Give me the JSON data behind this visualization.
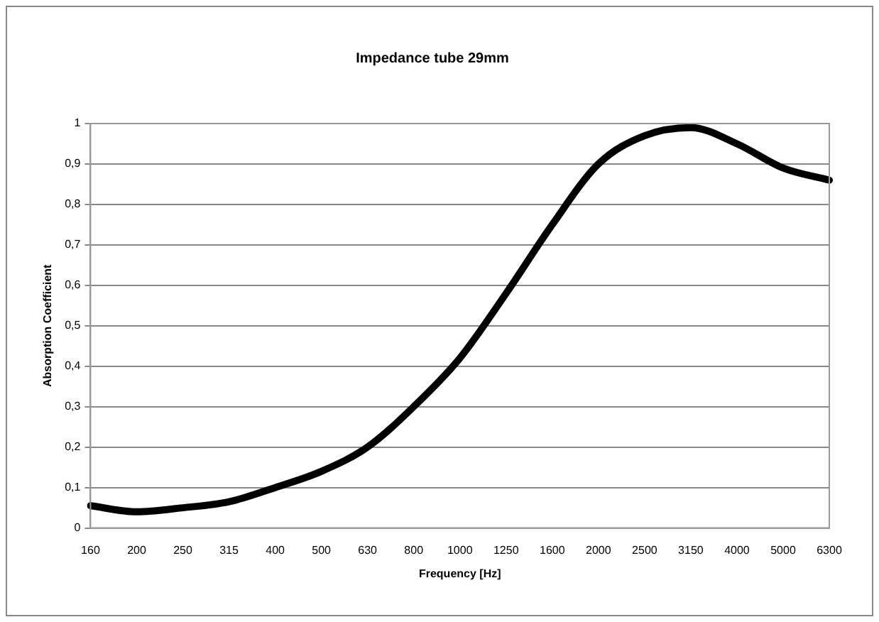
{
  "chart_data": {
    "type": "line",
    "title": "Impedance tube 29mm",
    "xlabel": "Frequency [Hz]",
    "ylabel": "Absorption Coefficient",
    "categories": [
      "160",
      "200",
      "250",
      "315",
      "400",
      "500",
      "630",
      "800",
      "1000",
      "1250",
      "1600",
      "2000",
      "2500",
      "3150",
      "4000",
      "5000",
      "6300"
    ],
    "series": [
      {
        "color": "#000000",
        "values": [
          0.055,
          0.04,
          0.05,
          0.065,
          0.1,
          0.14,
          0.2,
          0.3,
          0.42,
          0.58,
          0.75,
          0.9,
          0.97,
          0.99,
          0.95,
          0.89,
          0.86
        ]
      }
    ],
    "ylim": [
      0,
      1
    ],
    "yticks": [
      0,
      {
        "value": 0.1,
        "label": "0,1"
      },
      {
        "value": 0.2,
        "label": "0,2"
      },
      {
        "value": 0.3,
        "label": "0,3"
      },
      {
        "value": 0.4,
        "label": "0,4"
      },
      {
        "value": 0.5,
        "label": "0,5"
      },
      {
        "value": 0.6,
        "label": "0,6"
      },
      {
        "value": 0.7,
        "label": "0,7"
      },
      {
        "value": 0.8,
        "label": "0,8"
      },
      {
        "value": 0.9,
        "label": "0,9"
      },
      1
    ],
    "grid": "y",
    "legend": false,
    "marker": "none",
    "line_style": "solid"
  }
}
